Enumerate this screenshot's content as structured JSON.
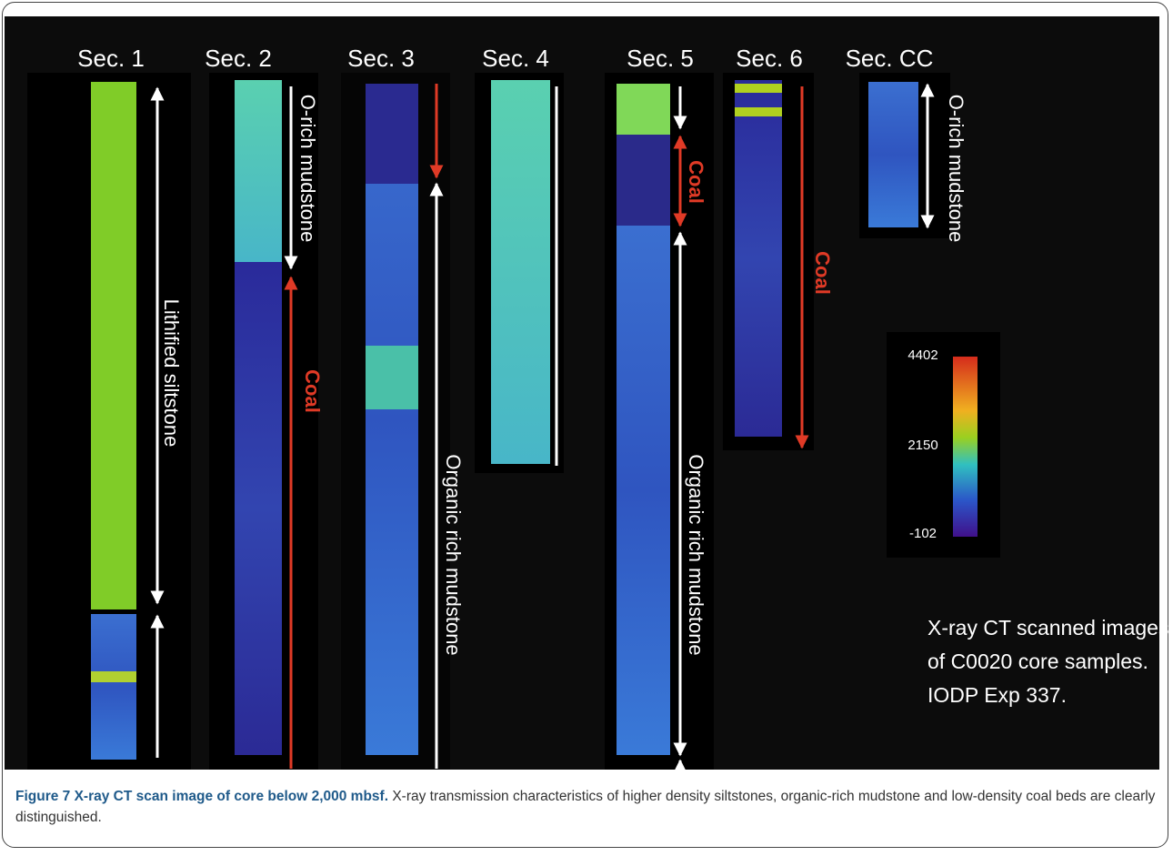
{
  "figure": {
    "sections": [
      "Sec. 1",
      "Sec. 2",
      "Sec. 3",
      "Sec. 4",
      "Sec. 5",
      "Sec. 6",
      "Sec. CC"
    ],
    "annotations": [
      "Lithified siltstone",
      "O-rich mudstone",
      "Coal",
      "Organic rich mudstone",
      "Coal",
      "Organic rich mudstone",
      "Coal",
      "O-rich mudstone"
    ],
    "colorbar": {
      "ticks": [
        "4402",
        "2150",
        "-102"
      ]
    },
    "note": [
      "X-ray CT scanned images",
      "of C0020 core samples.",
      "IODP Exp 337."
    ]
  },
  "caption": {
    "label": "Figure 7 X-ray CT scan image of core below 2,000 mbsf.",
    "text": "X-ray transmission characteristics of higher density siltstones, organic-rich mudstone and low-density coal beds are clearly distinguished."
  }
}
